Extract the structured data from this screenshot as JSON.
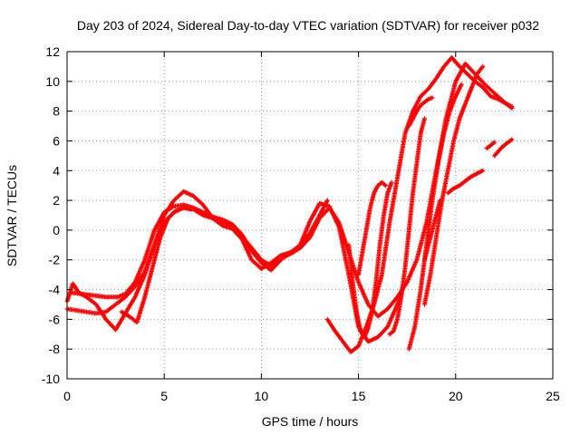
{
  "chart_data": {
    "type": "scatter",
    "title": "Day 203 of 2024, Sidereal Day-to-day VTEC variation (SDTVAR) for receiver p032",
    "xlabel": "GPS time / hours",
    "ylabel": "SDTVAR / TECUs",
    "xlim": [
      0,
      25
    ],
    "ylim": [
      -10,
      12
    ],
    "x_ticks": [
      0,
      5,
      10,
      15,
      20,
      25
    ],
    "y_ticks": [
      -10,
      -8,
      -6,
      -4,
      -2,
      0,
      2,
      4,
      6,
      8,
      10,
      12
    ],
    "grid": true,
    "grid_style": "dotted",
    "marker": "+",
    "series_color": "#ff0000",
    "series": [
      {
        "x": [
          0.0,
          0.3,
          0.6,
          1.0,
          1.5,
          2.0,
          2.5,
          3.0,
          3.5,
          4.0,
          4.5,
          5.0,
          5.5,
          6.0,
          6.5,
          7.0,
          7.5,
          8.0,
          8.5,
          9.0,
          9.5,
          10.0,
          10.5,
          11.0,
          11.5,
          12.0,
          12.5,
          13.0,
          13.5,
          14.0,
          14.5,
          15.0,
          15.5,
          16.0,
          16.5,
          17.0,
          17.3
        ],
        "y": [
          -4.8,
          -3.6,
          -4.2,
          -4.5,
          -5.0,
          -6.0,
          -6.7,
          -5.6,
          -4.5,
          -3.0,
          -1.0,
          1.0,
          2.0,
          2.6,
          2.3,
          1.7,
          0.8,
          0.3,
          0.1,
          -0.6,
          -2.0,
          -2.6,
          -2.2,
          -1.7,
          -1.5,
          -1.0,
          0.6,
          1.8,
          1.6,
          0.2,
          -3.0,
          -6.5,
          -7.5,
          -7.2,
          -6.5,
          -5.0,
          -3.8
        ]
      },
      {
        "x": [
          0.0,
          0.5,
          1.0,
          1.5,
          2.0,
          2.5,
          3.0,
          3.5,
          4.0,
          4.5,
          5.0,
          5.5,
          6.0,
          6.5,
          7.0,
          7.5,
          8.0,
          8.5,
          9.0,
          9.5,
          10.0,
          10.5,
          11.0,
          11.5,
          12.0,
          12.5,
          13.0,
          13.5,
          14.0,
          14.5,
          15.0,
          15.5,
          16.0,
          16.5,
          17.0,
          17.5,
          18.0,
          18.5,
          19.0,
          19.5,
          20.0,
          20.5,
          21.0,
          21.5,
          22.0,
          22.5,
          22.9
        ],
        "y": [
          -5.3,
          -5.4,
          -5.5,
          -5.6,
          -5.5,
          -5.0,
          -4.5,
          -3.8,
          -2.8,
          -1.0,
          0.5,
          1.2,
          1.5,
          1.4,
          1.0,
          0.8,
          0.6,
          0.2,
          -0.4,
          -1.2,
          -2.0,
          -2.4,
          -1.9,
          -1.6,
          -1.2,
          -0.5,
          0.8,
          1.5,
          0.5,
          -1.5,
          -3.5,
          -5.0,
          -5.8,
          -5.3,
          -4.5,
          -3.5,
          -2.0,
          0.5,
          4.0,
          7.5,
          10.0,
          11.2,
          10.5,
          9.8,
          9.2,
          8.6,
          8.2
        ]
      },
      {
        "x": [
          0.2,
          0.8,
          1.4,
          2.0,
          2.6,
          3.0,
          3.5,
          4.0,
          4.5,
          5.0,
          5.5,
          6.0,
          6.5,
          7.0,
          7.5,
          8.0,
          8.5,
          9.0,
          9.5,
          10.0,
          10.5,
          11.0,
          11.5,
          12.0,
          12.5,
          13.0,
          13.4
        ],
        "y": [
          -4.2,
          -4.3,
          -4.4,
          -4.5,
          -4.5,
          -4.3,
          -3.5,
          -2.0,
          0.0,
          1.2,
          1.6,
          1.7,
          1.5,
          1.2,
          0.9,
          0.7,
          0.4,
          -0.3,
          -1.4,
          -2.2,
          -2.7,
          -2.0,
          -1.5,
          -1.1,
          -0.2,
          1.0,
          2.0
        ]
      },
      {
        "x": [
          2.8,
          3.2,
          3.6,
          4.0,
          4.4,
          4.8,
          5.2,
          5.6,
          6.0,
          6.4
        ],
        "y": [
          -5.5,
          -5.8,
          -6.2,
          -4.5,
          -2.5,
          -0.5,
          0.8,
          1.3,
          1.5,
          1.4
        ]
      },
      {
        "x": [
          13.4,
          13.8,
          14.2,
          14.6,
          15.0,
          15.4,
          15.8,
          16.2,
          16.6,
          17.0,
          17.4,
          17.8,
          18.2,
          18.6,
          19.0,
          19.4,
          19.8,
          20.2,
          20.6,
          21.0,
          21.4,
          21.8,
          22.2,
          22.6,
          22.9
        ],
        "y": [
          -6.0,
          -6.8,
          -7.5,
          -8.2,
          -7.8,
          -6.5,
          -5.0,
          -3.0,
          0.5,
          3.5,
          6.5,
          8.0,
          9.0,
          9.5,
          10.2,
          11.0,
          11.6,
          11.0,
          10.5,
          10.0,
          9.6,
          9.0,
          8.8,
          8.5,
          8.3
        ]
      },
      {
        "x": [
          17.6,
          17.8,
          18.0,
          18.2,
          18.4,
          18.6,
          18.8
        ],
        "y": [
          7.0,
          7.5,
          8.0,
          8.4,
          8.6,
          8.8,
          8.9
        ]
      },
      {
        "x": [
          19.6,
          19.9,
          20.2,
          20.5,
          20.8,
          21.1,
          21.4
        ],
        "y": [
          2.5,
          2.8,
          3.0,
          3.3,
          3.6,
          3.8,
          4.0
        ]
      },
      {
        "x": [
          22.0,
          22.2,
          22.4,
          22.6,
          22.8,
          22.9
        ],
        "y": [
          5.0,
          5.3,
          5.6,
          5.8,
          6.0,
          6.1
        ]
      },
      {
        "x": [
          21.6,
          21.8,
          22.0
        ],
        "y": [
          5.5,
          5.7,
          5.9
        ]
      },
      {
        "x": [
          14.5,
          14.7,
          14.9,
          15.1,
          15.3,
          15.5,
          15.7,
          15.9,
          16.1,
          16.3,
          16.5,
          16.7
        ],
        "y": [
          -1.0,
          -3.5,
          -5.5,
          -6.8,
          -7.2,
          -6.6,
          -5.5,
          -3.5,
          -1.0,
          1.0,
          2.5,
          3.2
        ]
      },
      {
        "x": [
          15.0,
          15.2,
          15.4,
          15.6,
          15.8,
          16.0,
          16.2,
          16.4
        ],
        "y": [
          -3.0,
          -1.5,
          0.0,
          1.5,
          2.5,
          3.0,
          3.2,
          3.0
        ]
      },
      {
        "x": [
          16.6,
          16.8,
          17.0,
          17.2,
          17.4,
          17.6,
          17.8,
          18.0,
          18.2,
          18.4
        ],
        "y": [
          -7.0,
          -6.8,
          -6.0,
          -4.5,
          -2.5,
          0.0,
          2.5,
          4.5,
          6.5,
          7.5
        ]
      },
      {
        "x": [
          17.6,
          17.9,
          18.2,
          18.5,
          18.8,
          19.1,
          19.4,
          19.7,
          20.0,
          20.3
        ],
        "y": [
          -8.0,
          -6.5,
          -4.0,
          -1.0,
          2.0,
          4.5,
          6.5,
          8.0,
          9.0,
          9.8
        ]
      },
      {
        "x": [
          18.4,
          18.7,
          19.0,
          19.3,
          19.6,
          19.9,
          20.2,
          20.5,
          20.8,
          21.1,
          21.4
        ],
        "y": [
          -5.0,
          -3.0,
          -0.5,
          2.0,
          4.0,
          6.0,
          7.5,
          8.5,
          9.5,
          10.5,
          11.0
        ]
      },
      {
        "x": [
          18.4,
          18.6,
          18.8,
          19.0,
          19.2
        ],
        "y": [
          -2.0,
          -1.0,
          0.0,
          1.0,
          2.0
        ]
      }
    ]
  }
}
